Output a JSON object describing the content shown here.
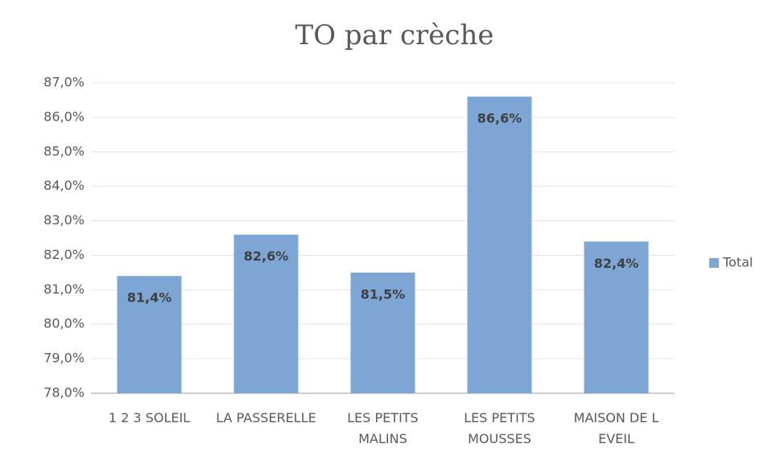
{
  "chart_data": {
    "type": "bar",
    "title": "TO par crèche",
    "categories": [
      "1 2 3 SOLEIL",
      "LA PASSERELLE",
      "LES PETITS MALINS",
      "LES PETITS MOUSSES",
      "MAISON DE L EVEIL"
    ],
    "series": [
      {
        "name": "Total",
        "color": "#7ea6d4",
        "values": [
          81.4,
          82.6,
          81.5,
          86.6,
          82.4
        ],
        "value_labels": [
          "81,4%",
          "82,6%",
          "81,5%",
          "86,6%",
          "82,4%"
        ]
      }
    ],
    "ylim": [
      78,
      87
    ],
    "yticks": [
      {
        "value": 78,
        "label": "78,0%"
      },
      {
        "value": 79,
        "label": "79,0%"
      },
      {
        "value": 80,
        "label": "80,0%"
      },
      {
        "value": 81,
        "label": "81,0%"
      },
      {
        "value": 82,
        "label": "82,0%"
      },
      {
        "value": 83,
        "label": "83,0%"
      },
      {
        "value": 84,
        "label": "84,0%"
      },
      {
        "value": 85,
        "label": "85,0%"
      },
      {
        "value": 86,
        "label": "86,0%"
      },
      {
        "value": 87,
        "label": "87,0%"
      }
    ],
    "grid": true,
    "legend": "right"
  }
}
